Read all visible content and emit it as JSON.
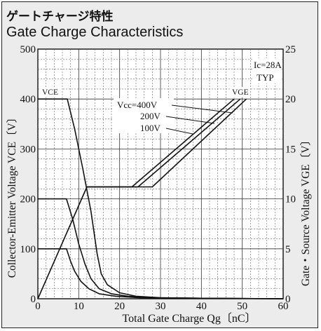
{
  "chart_data": {
    "type": "line",
    "title_jp": "ゲートチャージ特性",
    "title": "Gate Charge Characteristics",
    "xlabel": "Total Gate Charge Qg〔nC〕",
    "ylabel_left": "Collector-Emitter Voltage VCE〔V〕",
    "ylabel_right": "Gate・Source Voltage VGE〔V〕",
    "xlim": [
      0,
      60
    ],
    "ylim_left": [
      0,
      500
    ],
    "ylim_right": [
      0,
      25
    ],
    "x_ticks": [
      "0",
      "10",
      "20",
      "30",
      "40",
      "50",
      "60"
    ],
    "y_left_ticks": [
      "0",
      "100",
      "200",
      "300",
      "400",
      "500"
    ],
    "y_right_ticks": [
      "0",
      "5",
      "10",
      "15",
      "20",
      "25"
    ],
    "grid": true,
    "conditions": [
      "Ic=28A",
      "TYP"
    ],
    "annotations": {
      "vce_label": "VCE",
      "vge_label": "VGE",
      "vcc_400": "Vcc=400V",
      "vcc_200": "200V",
      "vcc_100": "100V"
    },
    "series": [
      {
        "axis": "left",
        "points": [
          [
            0,
            400
          ],
          [
            7.2,
            400
          ],
          [
            9,
            340
          ],
          [
            11,
            260
          ],
          [
            13,
            175
          ],
          [
            14.5,
            90
          ],
          [
            15.5,
            50
          ],
          [
            17,
            28
          ],
          [
            20,
            12
          ],
          [
            24,
            5
          ],
          [
            30,
            2
          ],
          [
            40,
            1
          ],
          [
            60,
            0
          ]
        ]
      },
      {
        "axis": "left",
        "points": [
          [
            0,
            200
          ],
          [
            7,
            200
          ],
          [
            8.5,
            160
          ],
          [
            10,
            110
          ],
          [
            11.5,
            70
          ],
          [
            13,
            40
          ],
          [
            15,
            20
          ],
          [
            18,
            10
          ],
          [
            22,
            5
          ],
          [
            28,
            2
          ],
          [
            40,
            1
          ],
          [
            60,
            0
          ]
        ]
      },
      {
        "axis": "left",
        "points": [
          [
            0,
            100
          ],
          [
            7,
            100
          ],
          [
            8,
            75
          ],
          [
            9,
            55
          ],
          [
            10.5,
            35
          ],
          [
            12.5,
            20
          ],
          [
            15,
            10
          ],
          [
            19,
            5
          ],
          [
            25,
            2
          ],
          [
            40,
            1
          ],
          [
            60,
            0
          ]
        ]
      },
      {
        "axis": "right",
        "points": [
          [
            0,
            0
          ],
          [
            12,
            11.2
          ],
          [
            23,
            11.2
          ],
          [
            48,
            20
          ]
        ]
      },
      {
        "axis": "right",
        "points": [
          [
            12,
            11.2
          ],
          [
            24.5,
            11.2
          ],
          [
            49.5,
            20
          ]
        ]
      },
      {
        "axis": "right",
        "points": [
          [
            12,
            11.2
          ],
          [
            28,
            11.2
          ],
          [
            51,
            20
          ]
        ]
      }
    ]
  }
}
